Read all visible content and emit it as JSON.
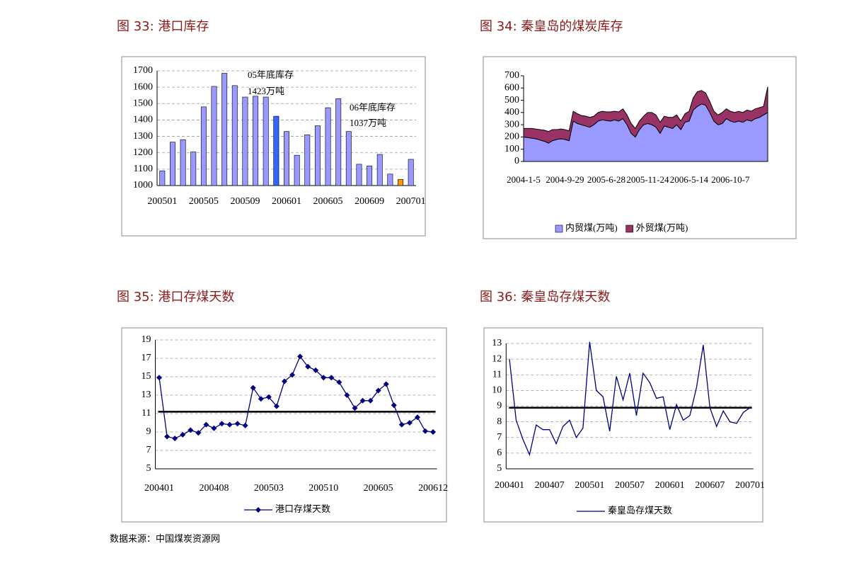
{
  "chart_data": [
    {
      "type": "bar",
      "title": "图 33:  港口库存",
      "categories": [
        "200501",
        null,
        null,
        null,
        "200505",
        null,
        null,
        null,
        "200509",
        null,
        null,
        null,
        "200601",
        null,
        null,
        null,
        "200605",
        null,
        null,
        null,
        "200609",
        null,
        null,
        null,
        "200701"
      ],
      "values": [
        1090,
        1265,
        1280,
        1205,
        1480,
        1605,
        1685,
        1610,
        1540,
        1545,
        1540,
        1423,
        1330,
        1185,
        1310,
        1365,
        1475,
        1530,
        1330,
        1130,
        1120,
        1190,
        1070,
        1037,
        1160
      ],
      "colors": [
        "#9999ff",
        "#9999ff",
        "#9999ff",
        "#9999ff",
        "#9999ff",
        "#9999ff",
        "#9999ff",
        "#9999ff",
        "#9999ff",
        "#9999ff",
        "#9999ff",
        "#3366ff",
        "#9999ff",
        "#9999ff",
        "#9999ff",
        "#9999ff",
        "#9999ff",
        "#9999ff",
        "#9999ff",
        "#9999ff",
        "#9999ff",
        "#9999ff",
        "#9999ff",
        "#ff9900",
        "#9999ff"
      ],
      "ylim": [
        1000,
        1700
      ],
      "yticks": [
        1000,
        1100,
        1200,
        1300,
        1400,
        1500,
        1600,
        1700
      ],
      "grid": true,
      "annotations": [
        "05年底库存",
        "1423万吨",
        "06年底库存",
        "1037万吨"
      ]
    },
    {
      "type": "area",
      "title": "图 34:  秦皇岛的煤炭库存",
      "categories": [
        "2004-1-5",
        null,
        null,
        null,
        null,
        null,
        null,
        null,
        null,
        null,
        "2004-9-29",
        null,
        null,
        null,
        null,
        null,
        null,
        null,
        null,
        null,
        "2005-6-28",
        null,
        null,
        null,
        null,
        null,
        null,
        null,
        null,
        null,
        "2005-11-24",
        null,
        null,
        null,
        null,
        null,
        null,
        null,
        null,
        null,
        "2006-5-14",
        null,
        null,
        null,
        null,
        null,
        null,
        null,
        null,
        null,
        "2006-10-7",
        null,
        null,
        null,
        null,
        null,
        null,
        null,
        null,
        null
      ],
      "series": [
        {
          "name": "内贸煤(万吨)",
          "color": "#9999ff",
          "values": [
            200,
            195,
            190,
            185,
            175,
            165,
            150,
            170,
            180,
            185,
            180,
            170,
            330,
            310,
            300,
            290,
            280,
            300,
            330,
            340,
            335,
            330,
            340,
            330,
            350,
            300,
            230,
            200,
            260,
            300,
            310,
            300,
            280,
            230,
            290,
            280,
            270,
            300,
            260,
            320,
            330,
            420,
            450,
            470,
            460,
            400,
            330,
            300,
            310,
            350,
            330,
            320,
            330,
            320,
            340,
            330,
            350,
            360,
            380,
            400
          ]
        },
        {
          "name": "外贸煤(万吨)",
          "color": "#993366",
          "values": [
            70,
            75,
            80,
            80,
            85,
            90,
            95,
            90,
            80,
            80,
            80,
            80,
            80,
            80,
            75,
            80,
            80,
            70,
            70,
            70,
            70,
            75,
            70,
            75,
            80,
            80,
            80,
            70,
            70,
            70,
            90,
            100,
            100,
            90,
            80,
            80,
            90,
            80,
            70,
            70,
            80,
            100,
            120,
            110,
            100,
            90,
            80,
            80,
            90,
            80,
            80,
            80,
            80,
            80,
            80,
            80,
            80,
            80,
            70,
            210
          ]
        }
      ],
      "ylim": [
        0,
        700
      ],
      "yticks": [
        0,
        100,
        200,
        300,
        400,
        500,
        600,
        700
      ],
      "grid": false
    },
    {
      "type": "line",
      "title": "图 35:  港口存煤天数",
      "categories": [
        "200401",
        null,
        null,
        null,
        null,
        null,
        null,
        "200408",
        null,
        null,
        null,
        null,
        null,
        null,
        "200503",
        null,
        null,
        null,
        null,
        null,
        null,
        "200510",
        null,
        null,
        null,
        null,
        null,
        null,
        "200605",
        null,
        null,
        null,
        null,
        null,
        null,
        "200612"
      ],
      "series": [
        {
          "name": "港口存煤天数",
          "color": "#000080",
          "marker": "diamond",
          "values": [
            14.9,
            8.5,
            8.3,
            8.7,
            9.2,
            8.9,
            9.8,
            9.4,
            9.9,
            9.8,
            9.9,
            9.7,
            13.8,
            12.6,
            12.8,
            11.8,
            14.5,
            15.2,
            17.2,
            16.1,
            15.7,
            14.9,
            14.9,
            14.4,
            13.0,
            11.6,
            12.4,
            12.4,
            13.5,
            14.2,
            11.9,
            9.8,
            10.0,
            10.6,
            9.1,
            9.0
          ]
        }
      ],
      "reference_line": 11.2,
      "ylim": [
        5,
        19
      ],
      "yticks": [
        5,
        7,
        9,
        11,
        13,
        15,
        17,
        19
      ],
      "grid": true
    },
    {
      "type": "line",
      "title": "图 36:  秦皇岛存煤天数",
      "categories": [
        "200401",
        null,
        null,
        null,
        null,
        null,
        "200407",
        null,
        null,
        null,
        null,
        null,
        "200501",
        null,
        null,
        null,
        null,
        null,
        "200507",
        null,
        null,
        null,
        null,
        null,
        "200601",
        null,
        null,
        null,
        null,
        null,
        "200607",
        null,
        null,
        null,
        null,
        null,
        "200701"
      ],
      "series": [
        {
          "name": "秦皇岛存煤天数",
          "color": "#000080",
          "values": [
            12.0,
            8.1,
            6.9,
            5.9,
            7.8,
            7.5,
            7.5,
            6.6,
            7.7,
            8.1,
            7.0,
            7.6,
            13.1,
            10.0,
            9.6,
            7.4,
            10.9,
            9.4,
            11.1,
            8.4,
            11.1,
            10.5,
            9.5,
            9.6,
            7.5,
            9.1,
            8.1,
            8.4,
            10.2,
            12.9,
            8.9,
            7.7,
            8.7,
            8.0,
            7.9,
            8.6,
            8.9
          ]
        }
      ],
      "reference_line": 8.9,
      "ylim": [
        5,
        13
      ],
      "yticks": [
        5,
        6,
        7,
        8,
        9,
        10,
        11,
        12,
        13
      ],
      "grid": true
    }
  ],
  "source": "数据来源：中国煤炭资源网"
}
